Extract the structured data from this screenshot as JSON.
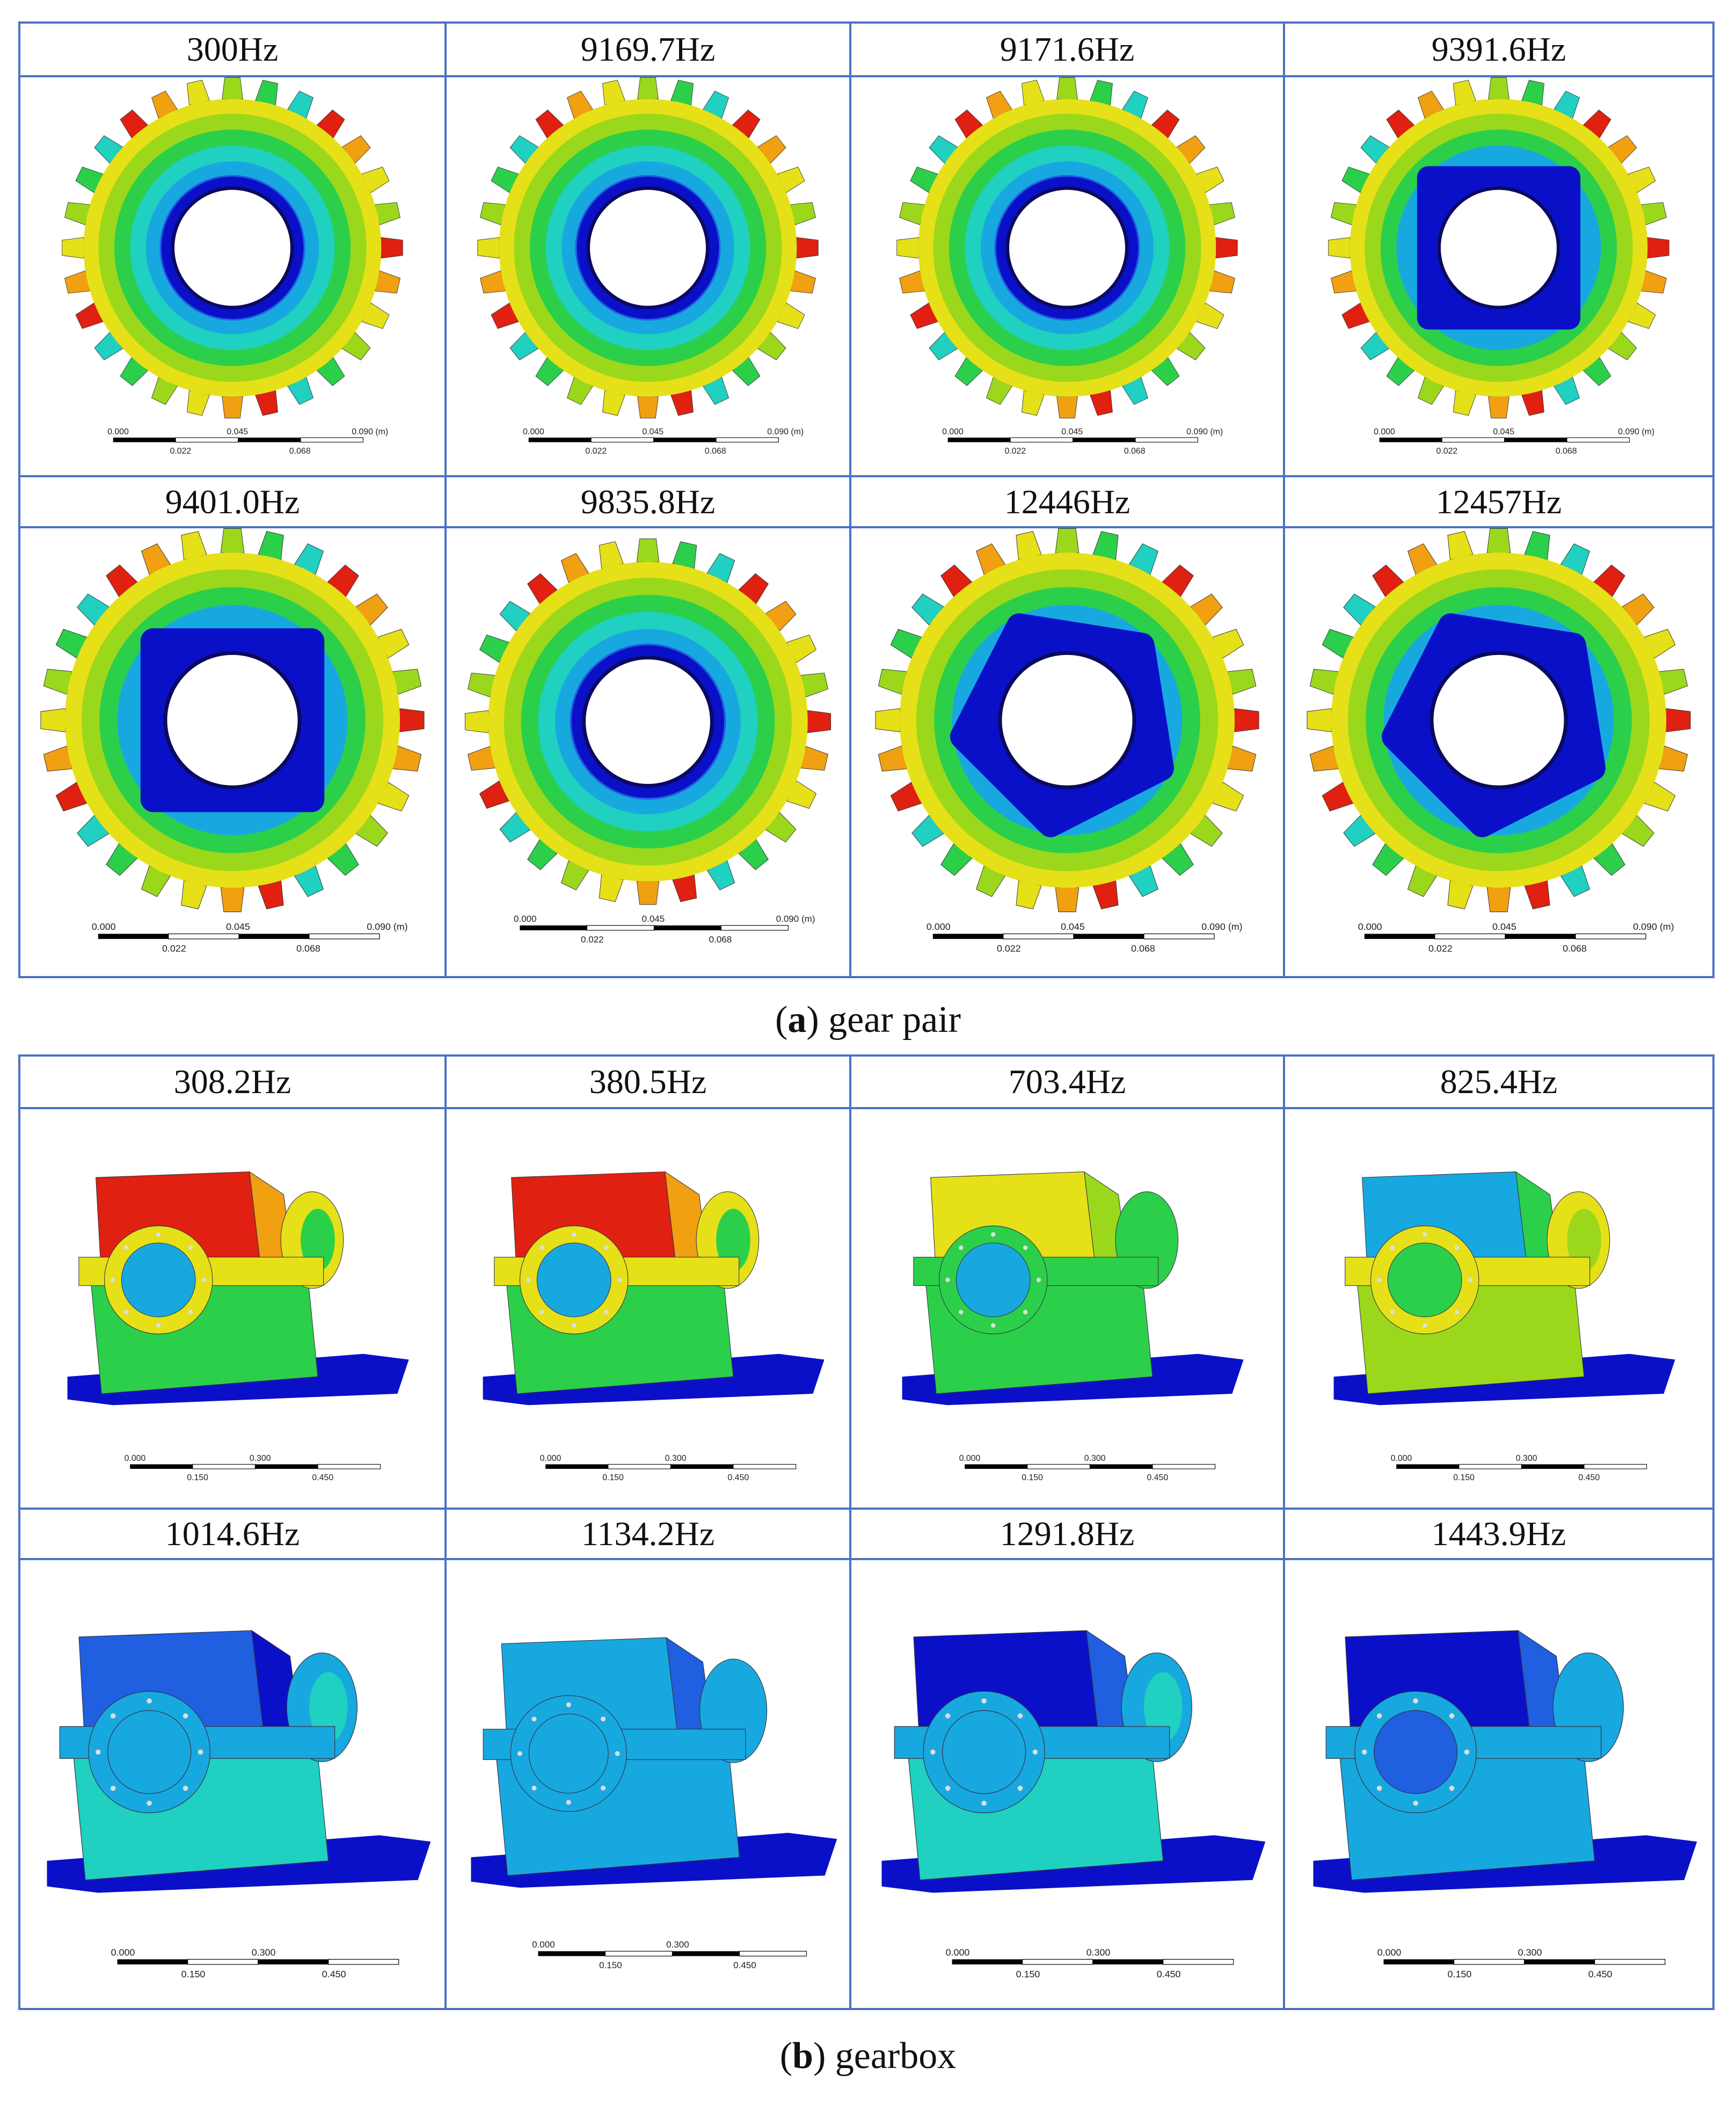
{
  "panel_a": {
    "caption_letter": "a",
    "caption_text": "gear pair",
    "cells": [
      {
        "freq": "300Hz",
        "scale": [
          "0.000",
          "0.045",
          "0.090 (m)",
          "0.022",
          "0.068"
        ]
      },
      {
        "freq": "9169.7Hz",
        "scale": [
          "0.000",
          "0.045",
          "0.090 (m)",
          "0.022",
          "0.068"
        ]
      },
      {
        "freq": "9171.6Hz",
        "scale": [
          "0.000",
          "0.045",
          "0.090 (m)",
          "0.022",
          "0.068"
        ]
      },
      {
        "freq": "9391.6Hz",
        "scale": [
          "0.000",
          "0.045",
          "0.090 (m)",
          "0.022",
          "0.068"
        ]
      },
      {
        "freq": "9401.0Hz",
        "scale": [
          "0.000",
          "0.045",
          "0.090 (m)",
          "0.022",
          "0.068"
        ]
      },
      {
        "freq": "9835.8Hz",
        "scale": [
          "0.000",
          "0.045",
          "0.090 (m)",
          "0.022",
          "0.068"
        ]
      },
      {
        "freq": "12446Hz",
        "scale": [
          "0.000",
          "0.045",
          "0.090 (m)",
          "0.022",
          "0.068"
        ]
      },
      {
        "freq": "12457Hz",
        "scale": [
          "0.000",
          "0.045",
          "0.090 (m)",
          "0.022",
          "0.068"
        ]
      }
    ]
  },
  "panel_b": {
    "caption_letter": "b",
    "caption_text": "gearbox",
    "cells": [
      {
        "freq": "308.2Hz",
        "scale": [
          "0.000",
          "0.300",
          "0.150",
          "0.450"
        ]
      },
      {
        "freq": "380.5Hz",
        "scale": [
          "0.000",
          "0.300",
          "0.150",
          "0.450"
        ]
      },
      {
        "freq": "703.4Hz",
        "scale": [
          "0.000",
          "0.300",
          "0.150",
          "0.450"
        ]
      },
      {
        "freq": "825.4Hz",
        "scale": [
          "0.000",
          "0.300",
          "0.150",
          "0.450"
        ]
      },
      {
        "freq": "1014.6Hz",
        "scale": [
          "0.000",
          "0.300",
          "0.150",
          "0.450"
        ]
      },
      {
        "freq": "1134.2Hz",
        "scale": [
          "0.000",
          "0.300",
          "0.150",
          "0.450"
        ]
      },
      {
        "freq": "1291.8Hz",
        "scale": [
          "0.000",
          "0.300",
          "0.150",
          "0.450"
        ]
      },
      {
        "freq": "1443.9Hz",
        "scale": [
          "0.000",
          "0.300",
          "0.150",
          "0.450"
        ]
      }
    ]
  },
  "colors": {
    "border": "#4a72c4",
    "contour": [
      "#0a10c8",
      "#1f5fe0",
      "#18a8e0",
      "#20d0c0",
      "#2ccf4a",
      "#9bd81c",
      "#e6e018",
      "#f0a010",
      "#e02010"
    ]
  }
}
